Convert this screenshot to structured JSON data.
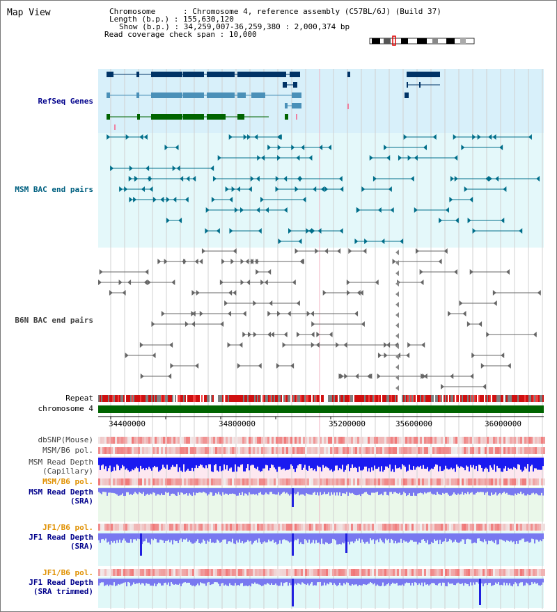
{
  "page_title": "Map View",
  "info": {
    "chromosome_label": "Chromosome",
    "chromosome_value": "Chromosome 4, reference assembly (C57BL/6J) (Build 37)",
    "length_label": "Length (b.p.)",
    "length_value": "155,630,120",
    "show_label": "Show (b.p.)",
    "show_value": "34,259,007-36,259,380 : 2,000,374 bp",
    "coverage_label": "Read coverage check span",
    "coverage_value": "10,000"
  },
  "tracks": {
    "refseq": "RefSeq Genes",
    "msm_bac": "MSM BAC end pairs",
    "b6n_bac": "B6N BAC end pairs",
    "repeat": "Repeat",
    "chromosome": "chromosome 4",
    "dbsnp": "dbSNP(Mouse)",
    "msm_b6_pol_1": "MSM/B6 pol.",
    "msm_depth_cap_1": "MSM Read Depth",
    "msm_depth_cap_2": "(Capillary)",
    "msm_b6_pol_2": "MSM/B6 pol.",
    "msm_depth_sra_1": "MSM Read Depth",
    "msm_depth_sra_2": "(SRA)",
    "jf1_b6_pol_1": "JF1/B6 pol.",
    "jf1_depth_sra_1": "JF1 Read Depth",
    "jf1_depth_sra_2": "(SRA)",
    "jf1_b6_pol_2": "JF1/B6 pol.",
    "jf1_depth_trim_1": "JF1 Read Depth",
    "jf1_depth_trim_2": "(SRA trimmed)"
  },
  "axis_ticks": [
    "34400000",
    "34800000",
    "35200000",
    "35600000",
    "36000000"
  ],
  "colors": {
    "label_blue": "#00008b",
    "label_teal": "#006080",
    "label_orange": "#e09000",
    "label_gray": "#404040",
    "refseq_bg": "#d8f0fa",
    "msm_bg": "#e4f8fa",
    "gene_navy": "#003366",
    "gene_steel": "#4a90b8",
    "gene_green": "#006400",
    "chromosome_green": "#006400",
    "depth_blue": "#2020e0",
    "depth_light": "#7878f0"
  }
}
